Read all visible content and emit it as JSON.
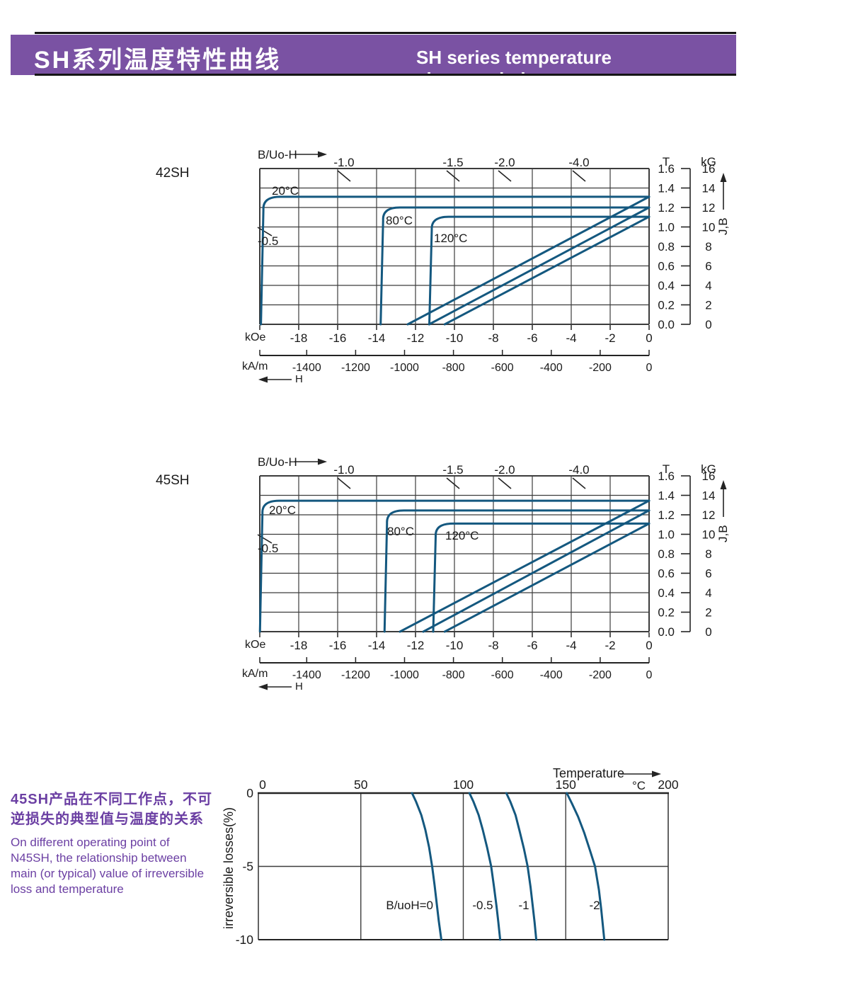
{
  "header": {
    "title_zh": "SH系列温度特性曲线",
    "title_en": "SH  series temperature characteristic"
  },
  "colors": {
    "banner": "#7A52A3",
    "banner_text": "#ffffff",
    "curve": "#14587F",
    "grid": "#3C3C3C",
    "axis": "#242424",
    "purple_text": "#6B3FA3"
  },
  "chart_data": [
    {
      "type": "line",
      "name": "42SH",
      "top_axis_label": "B/Uo-H",
      "x_axis": {
        "unit_primary": "kOe",
        "ticks_primary": [
          -18,
          -16,
          -14,
          -12,
          -10,
          -8,
          -6,
          -4,
          -2,
          0
        ],
        "unit_secondary": "kA/m",
        "ticks_secondary": [
          -1400,
          -1200,
          -1000,
          -800,
          -600,
          -400,
          -200,
          0
        ],
        "range_kOe": [
          -20,
          0
        ],
        "arrow_label": "H"
      },
      "y_axis": {
        "unit_left": "T",
        "unit_right": "kG",
        "ticks_t": [
          "1.6",
          "1.4",
          "1.2",
          "1.0",
          "0.8",
          "0.6",
          "0.4",
          "0.2",
          "0.0"
        ],
        "ticks_kg": [
          16,
          14,
          12,
          10,
          8,
          6,
          4,
          2,
          0
        ],
        "range_kG": [
          0,
          16
        ],
        "axis_label": "J,B"
      },
      "load_line_labels_top": [
        "-1.0",
        "-1.5",
        "-2.0",
        "-4.0"
      ],
      "load_line_label_left": "-0.5",
      "grid": true,
      "series": [
        {
          "name": "20°C",
          "br_kG": 13.1,
          "hcj_kOe": -19.85,
          "hcb_kOe": -12.4
        },
        {
          "name": "80°C",
          "br_kG": 12.0,
          "hcj_kOe": -13.7,
          "hcb_kOe": -11.3
        },
        {
          "name": "120°C",
          "br_kG": 11.05,
          "hcj_kOe": -11.2,
          "hcb_kOe": -10.5
        }
      ]
    },
    {
      "type": "line",
      "name": "45SH",
      "top_axis_label": "B/Uo-H",
      "x_axis": {
        "unit_primary": "kOe",
        "ticks_primary": [
          -18,
          -16,
          -14,
          -12,
          -10,
          -8,
          -6,
          -4,
          -2,
          0
        ],
        "unit_secondary": "kA/m",
        "ticks_secondary": [
          -1400,
          -1200,
          -1000,
          -800,
          -600,
          -400,
          -200,
          0
        ],
        "range_kOe": [
          -20,
          0
        ],
        "arrow_label": "H"
      },
      "y_axis": {
        "unit_left": "T",
        "unit_right": "kG",
        "ticks_t": [
          "1.6",
          "1.4",
          "1.2",
          "1.0",
          "0.8",
          "0.6",
          "0.4",
          "0.2",
          "0.0"
        ],
        "ticks_kg": [
          16,
          14,
          12,
          10,
          8,
          6,
          4,
          2,
          0
        ],
        "range_kG": [
          0,
          16
        ],
        "axis_label": "J,B"
      },
      "load_line_labels_top": [
        "-1.0",
        "-1.5",
        "-2.0",
        "-4.0"
      ],
      "load_line_label_left": "-0.5",
      "grid": true,
      "series": [
        {
          "name": "20°C",
          "br_kG": 13.45,
          "hcj_kOe": -19.9,
          "hcb_kOe": -12.8
        },
        {
          "name": "80°C",
          "br_kG": 12.45,
          "hcj_kOe": -13.5,
          "hcb_kOe": -11.6
        },
        {
          "name": "120°C",
          "br_kG": 11.1,
          "hcj_kOe": -11.0,
          "hcb_kOe": -10.5
        }
      ]
    },
    {
      "type": "line",
      "name": "irreversible-loss-vs-temperature",
      "x_axis": {
        "label": "Temperature",
        "unit": "°C",
        "ticks": [
          0,
          50,
          100,
          150,
          200
        ],
        "range": [
          0,
          200
        ]
      },
      "y_axis": {
        "label": "irreversible  losses(%)",
        "ticks": [
          0,
          -5,
          -10
        ],
        "range": [
          -10,
          0
        ]
      },
      "grid": true,
      "series": [
        {
          "name": "B/uoH=0",
          "points": [
            [
              75,
              0
            ],
            [
              77,
              -0.6
            ],
            [
              79.5,
              -1.5
            ],
            [
              81.5,
              -2.5
            ],
            [
              83.3,
              -3.7
            ],
            [
              84.8,
              -5
            ],
            [
              86,
              -6.3
            ],
            [
              87,
              -7.5
            ],
            [
              88,
              -8.7
            ],
            [
              89.3,
              -10
            ]
          ]
        },
        {
          "name": "-0.5",
          "points": [
            [
              103,
              0
            ],
            [
              105,
              -0.6
            ],
            [
              107.5,
              -1.5
            ],
            [
              109.5,
              -2.5
            ],
            [
              111.6,
              -3.7
            ],
            [
              113.6,
              -5
            ],
            [
              115,
              -6.4
            ],
            [
              116.2,
              -7.7
            ],
            [
              117.1,
              -8.8
            ],
            [
              118,
              -10
            ]
          ]
        },
        {
          "name": "-1",
          "points": [
            [
              121,
              0
            ],
            [
              123,
              -0.6
            ],
            [
              125.5,
              -1.5
            ],
            [
              127.5,
              -2.6
            ],
            [
              129.6,
              -3.8
            ],
            [
              131.4,
              -5
            ],
            [
              132.8,
              -6.4
            ],
            [
              133.9,
              -7.7
            ],
            [
              134.8,
              -8.8
            ],
            [
              135.6,
              -10
            ]
          ]
        },
        {
          "name": "-2",
          "points": [
            [
              150.5,
              0
            ],
            [
              153,
              -0.7
            ],
            [
              156,
              -1.6
            ],
            [
              159,
              -2.7
            ],
            [
              161.8,
              -3.9
            ],
            [
              164.3,
              -5
            ],
            [
              166.2,
              -6.6
            ],
            [
              167.3,
              -7.9
            ],
            [
              168,
              -8.9
            ],
            [
              168.8,
              -10
            ]
          ]
        }
      ]
    }
  ],
  "note": {
    "zh": [
      "45SH产品在不同工作点，不可",
      "逆损失的典型值与温度的关系"
    ],
    "en": [
      "On different operating point of",
      "N45SH,  the relationship between",
      "main (or typical) value of irreversible",
      "loss and temperature"
    ]
  }
}
